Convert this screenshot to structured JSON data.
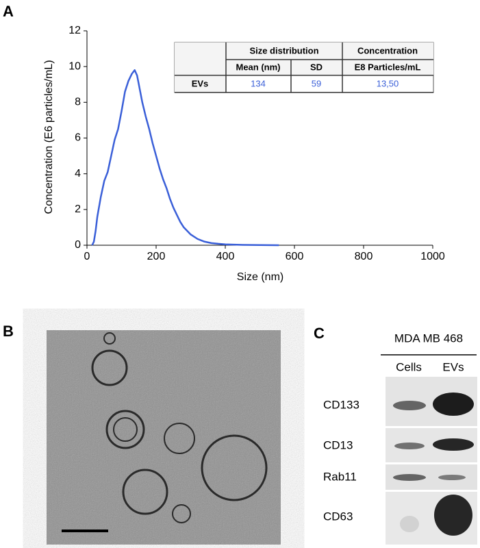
{
  "panels": {
    "a": "A",
    "b": "B",
    "c": "C"
  },
  "chart_data": {
    "type": "line",
    "xlabel": "Size (nm)",
    "ylabel": "Concentration (E6 particles/mL)",
    "x": [
      15,
      20,
      25,
      30,
      40,
      50,
      60,
      70,
      80,
      90,
      100,
      110,
      120,
      130,
      138,
      145,
      150,
      160,
      170,
      180,
      190,
      200,
      210,
      220,
      230,
      240,
      250,
      260,
      270,
      280,
      290,
      300,
      320,
      340,
      360,
      380,
      400,
      450,
      500,
      555
    ],
    "values": [
      0,
      0.2,
      0.8,
      1.6,
      2.7,
      3.6,
      4.1,
      5,
      5.9,
      6.5,
      7.5,
      8.6,
      9.2,
      9.6,
      9.8,
      9.5,
      9,
      8,
      7.2,
      6.5,
      5.7,
      5,
      4.3,
      3.7,
      3.2,
      2.6,
      2.1,
      1.7,
      1.3,
      1,
      0.8,
      0.6,
      0.35,
      0.2,
      0.12,
      0.08,
      0.05,
      0.02,
      0.01,
      0
    ],
    "color": "#3a5fd8",
    "xlim": [
      0,
      1000
    ],
    "xticks": [
      0,
      200,
      400,
      600,
      800,
      1000
    ],
    "ylim": [
      0,
      12
    ],
    "yticks": [
      0,
      2,
      4,
      6,
      8,
      10,
      12
    ]
  },
  "table": {
    "group1": "Size distribution",
    "group2": "Concentration",
    "headers": [
      "Mean (nm)",
      "SD",
      "E8 Particles/mL"
    ],
    "row_label": "EVs",
    "row": [
      134,
      59,
      "13,50"
    ]
  },
  "blot": {
    "group": "MDA MB 468",
    "lanes": [
      "Cells",
      "EVs"
    ],
    "markers": [
      "CD133",
      "CD13",
      "Rab11",
      "CD63"
    ]
  }
}
